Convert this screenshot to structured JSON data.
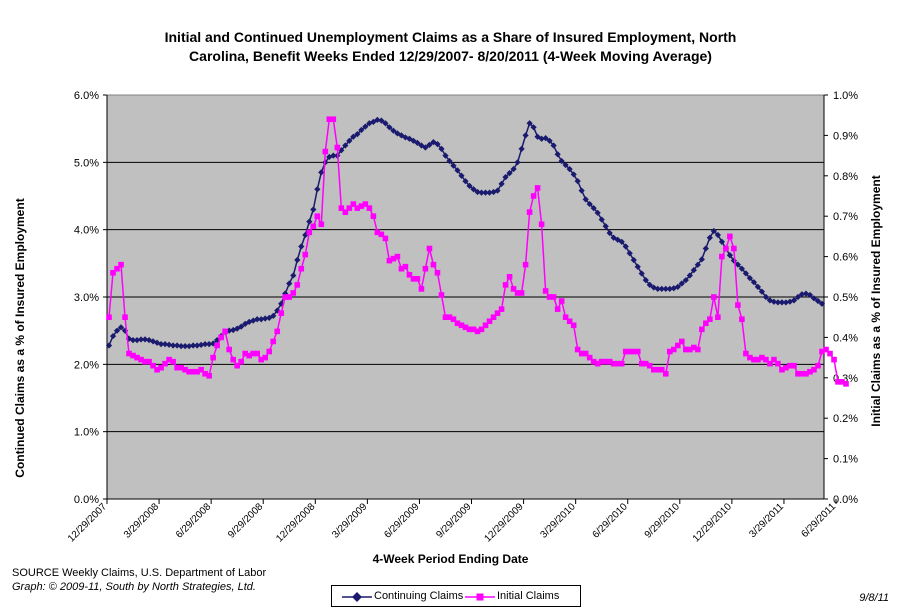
{
  "chart_data": {
    "type": "line",
    "title_line1": "Initial and Continued Unemployment Claims as a Share of Insured Employment, North",
    "title_line2": "Carolina, Benefit Weeks Ended 12/29/2007- 8/20/2011 (4-Week Moving Average)",
    "xlabel": "4-Week Period Ending Date",
    "ylabel_left": "Continued Claims as a % of Insured Employment",
    "ylabel_right": "Initial Claims as a % of Insured Employment",
    "y_left_ticks": [
      "0.0%",
      "1.0%",
      "2.0%",
      "3.0%",
      "4.0%",
      "5.0%",
      "6.0%"
    ],
    "y_right_ticks": [
      "0.0%",
      "0.1%",
      "0.2%",
      "0.3%",
      "0.4%",
      "0.5%",
      "0.6%",
      "0.7%",
      "0.8%",
      "0.9%",
      "1.0%"
    ],
    "ylim_left": [
      0,
      6
    ],
    "ylim_right": [
      0,
      1
    ],
    "x_tick_labels": [
      "12/29/2007",
      "3/29/2008",
      "6/29/2008",
      "9/29/2008",
      "12/29/2008",
      "3/29/2009",
      "6/29/2009",
      "9/29/2009",
      "12/29/2009",
      "3/29/2010",
      "6/29/2010",
      "9/29/2010",
      "12/29/2010",
      "3/29/2011",
      "6/29/2011"
    ],
    "x_tick_weeks": [
      0,
      13,
      26,
      39,
      52,
      65,
      78,
      91,
      104,
      117,
      130,
      143,
      156,
      169,
      182
    ],
    "legend_position": "bottom",
    "series": [
      {
        "name": "Continuing Claims",
        "axis": "left",
        "color": "#1a1a6e",
        "marker": "diamond",
        "values": [
          2.28,
          2.42,
          2.5,
          2.55,
          2.5,
          2.38,
          2.36,
          2.36,
          2.37,
          2.37,
          2.36,
          2.34,
          2.32,
          2.3,
          2.3,
          2.29,
          2.28,
          2.28,
          2.27,
          2.27,
          2.27,
          2.28,
          2.28,
          2.29,
          2.3,
          2.3,
          2.31,
          2.36,
          2.42,
          2.48,
          2.5,
          2.51,
          2.53,
          2.56,
          2.6,
          2.63,
          2.65,
          2.67,
          2.67,
          2.68,
          2.69,
          2.72,
          2.8,
          2.9,
          3.05,
          3.2,
          3.32,
          3.55,
          3.75,
          3.92,
          4.12,
          4.3,
          4.6,
          4.85,
          5.0,
          5.08,
          5.1,
          5.1,
          5.18,
          5.25,
          5.32,
          5.38,
          5.42,
          5.48,
          5.53,
          5.58,
          5.6,
          5.63,
          5.62,
          5.58,
          5.52,
          5.47,
          5.43,
          5.4,
          5.37,
          5.35,
          5.32,
          5.29,
          5.25,
          5.22,
          5.26,
          5.3,
          5.27,
          5.2,
          5.1,
          5.02,
          4.95,
          4.88,
          4.8,
          4.72,
          4.65,
          4.6,
          4.56,
          4.55,
          4.55,
          4.55,
          4.56,
          4.58,
          4.68,
          4.78,
          4.84,
          4.9,
          5.0,
          5.2,
          5.4,
          5.58,
          5.52,
          5.38,
          5.35,
          5.36,
          5.32,
          5.25,
          5.12,
          5.02,
          4.96,
          4.9,
          4.82,
          4.72,
          4.58,
          4.45,
          4.38,
          4.32,
          4.25,
          4.15,
          4.05,
          3.95,
          3.88,
          3.85,
          3.82,
          3.75,
          3.65,
          3.55,
          3.45,
          3.35,
          3.25,
          3.18,
          3.14,
          3.12,
          3.12,
          3.12,
          3.12,
          3.13,
          3.15,
          3.2,
          3.25,
          3.32,
          3.4,
          3.48,
          3.56,
          3.72,
          3.88,
          3.98,
          3.92,
          3.82,
          3.72,
          3.62,
          3.54,
          3.48,
          3.42,
          3.35,
          3.28,
          3.22,
          3.15,
          3.08,
          3.0,
          2.95,
          2.93,
          2.92,
          2.92,
          2.92,
          2.93,
          2.95,
          3.0,
          3.04,
          3.05,
          3.03,
          2.98,
          2.94,
          2.9
        ]
      },
      {
        "name": "Initial Claims",
        "axis": "right",
        "color": "#ff00ff",
        "marker": "square",
        "values": [
          0.45,
          0.56,
          0.57,
          0.58,
          0.45,
          0.36,
          0.355,
          0.35,
          0.345,
          0.34,
          0.34,
          0.33,
          0.32,
          0.325,
          0.335,
          0.345,
          0.34,
          0.325,
          0.325,
          0.32,
          0.315,
          0.315,
          0.315,
          0.32,
          0.31,
          0.305,
          0.35,
          0.38,
          0.4,
          0.415,
          0.37,
          0.345,
          0.33,
          0.34,
          0.36,
          0.355,
          0.36,
          0.36,
          0.345,
          0.35,
          0.365,
          0.39,
          0.415,
          0.46,
          0.5,
          0.5,
          0.51,
          0.53,
          0.57,
          0.605,
          0.66,
          0.675,
          0.7,
          0.68,
          0.86,
          0.94,
          0.94,
          0.87,
          0.72,
          0.71,
          0.72,
          0.73,
          0.72,
          0.725,
          0.73,
          0.72,
          0.7,
          0.66,
          0.655,
          0.645,
          0.59,
          0.595,
          0.6,
          0.57,
          0.575,
          0.555,
          0.545,
          0.545,
          0.52,
          0.57,
          0.62,
          0.58,
          0.56,
          0.505,
          0.45,
          0.45,
          0.445,
          0.435,
          0.43,
          0.425,
          0.42,
          0.42,
          0.415,
          0.42,
          0.43,
          0.44,
          0.45,
          0.46,
          0.47,
          0.53,
          0.55,
          0.52,
          0.51,
          0.51,
          0.58,
          0.71,
          0.75,
          0.77,
          0.68,
          0.515,
          0.5,
          0.5,
          0.47,
          0.49,
          0.45,
          0.44,
          0.43,
          0.37,
          0.36,
          0.36,
          0.35,
          0.34,
          0.335,
          0.34,
          0.34,
          0.34,
          0.335,
          0.335,
          0.335,
          0.365,
          0.365,
          0.365,
          0.365,
          0.335,
          0.335,
          0.33,
          0.32,
          0.32,
          0.32,
          0.31,
          0.365,
          0.37,
          0.38,
          0.39,
          0.37,
          0.37,
          0.375,
          0.37,
          0.42,
          0.435,
          0.445,
          0.5,
          0.45,
          0.6,
          0.62,
          0.65,
          0.62,
          0.48,
          0.445,
          0.36,
          0.35,
          0.345,
          0.345,
          0.35,
          0.345,
          0.335,
          0.345,
          0.335,
          0.32,
          0.325,
          0.33,
          0.33,
          0.31,
          0.31,
          0.31,
          0.315,
          0.32,
          0.33,
          0.365,
          0.37,
          0.36,
          0.345,
          0.29,
          0.29,
          0.285
        ]
      }
    ]
  },
  "source_text": "SOURCE  Weekly Claims, U.S. Department of Labor",
  "credit_text": "Graph: © 2009-11, South by North Strategies, Ltd.",
  "date_stamp": "9/8/11"
}
